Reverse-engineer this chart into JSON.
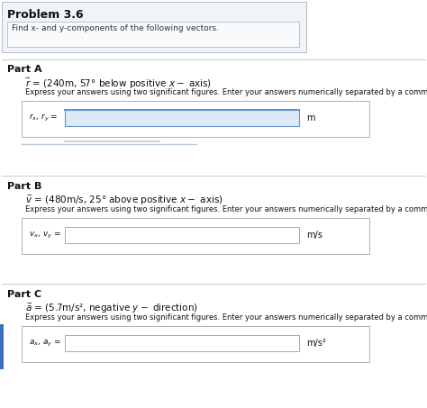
{
  "title": "Problem 3.6",
  "subtitle": "Find x- and y-components of the following vectors.",
  "white": "#ffffff",
  "part_a_label": "Part A",
  "part_a_vector": "$\\vec{r}$ = (240m, 57° below positive $x -$ axis)",
  "part_a_instruction": "Express your answers using two significant figures. Enter your answers numerically separated by a comma.",
  "part_a_field_label": "$r_x$, $r_y$ =",
  "part_a_unit": "m",
  "part_b_label": "Part B",
  "part_b_vector": "$\\vec{v}$ = (480m/s, 25° above positive $x -$ axis)",
  "part_b_instruction": "Express your answers using two significant figures. Enter your answers numerically separated by a comma.",
  "part_b_field_label": "$v_x$, $v_y$ =",
  "part_b_unit": "m/s",
  "part_c_label": "Part C",
  "part_c_vector": "$\\vec{a}$ = (5.7m/s², negative $y -$ direction)",
  "part_c_instruction": "Express your answers using two significant figures. Enter your answers numerically separated by a comma.",
  "part_c_field_label": "$a_x$, $a_y$ =",
  "part_c_unit": "m/s²",
  "header_bg": "#f0f4f8",
  "header_border": "#b0bec5",
  "subtitle_bg": "#f8fafc",
  "subtitle_border": "#b0bec5",
  "input_outer_bg": "#f8f8f8",
  "input_outer_border": "#b0b0b0",
  "input_field_bg": "#ffffff",
  "input_field_border": "#999999",
  "input_active_top": "#6096c8",
  "input_active_fill": "#dce9f7",
  "sep_color": "#cccccc",
  "text_dark": "#111111",
  "text_medium": "#333333",
  "left_bar_color": "#3a6fbd",
  "scroll_tab_color": "#c8d4e0",
  "scroll_tab_border": "#9ab0c0"
}
